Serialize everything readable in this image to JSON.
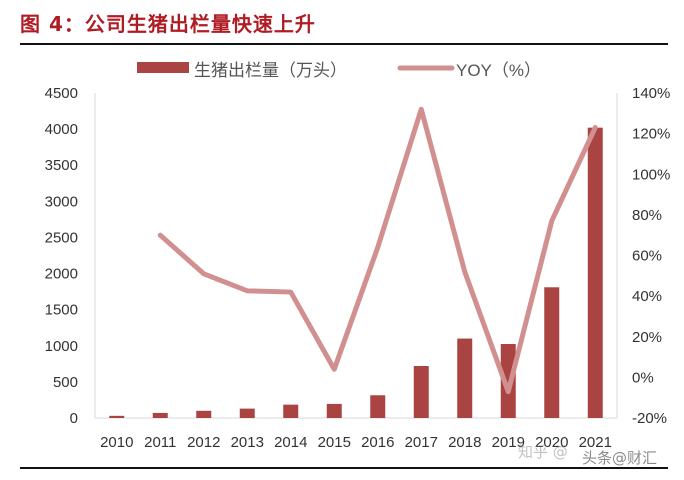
{
  "title": "图 4：公司生猪出栏量快速上升",
  "watermark": [
    "知乎 @",
    "头条@财汇"
  ],
  "chart_data": {
    "type": "bar+line",
    "categories": [
      "2010",
      "2011",
      "2012",
      "2013",
      "2014",
      "2015",
      "2016",
      "2017",
      "2018",
      "2019",
      "2020",
      "2021"
    ],
    "legend_position": "top",
    "grid": false,
    "series": [
      {
        "name": "生猪出栏量（万头）",
        "type": "bar",
        "axis": "left",
        "color": "#a94442",
        "values": [
          30,
          70,
          100,
          130,
          185,
          195,
          315,
          720,
          1100,
          1025,
          1810,
          4020
        ]
      },
      {
        "name": "YOY（%）",
        "type": "line",
        "axis": "right",
        "color": "#d28f8f",
        "values": [
          null,
          70,
          51,
          42.6,
          42,
          4,
          64,
          132,
          52,
          -7,
          77,
          123
        ]
      }
    ],
    "left_axis": {
      "ylim": [
        0,
        4500
      ],
      "ticks": [
        "0",
        "500",
        "1000",
        "1500",
        "2000",
        "2500",
        "3000",
        "3500",
        "4000",
        "4500"
      ]
    },
    "right_axis": {
      "ylim": [
        -20,
        140
      ],
      "ticks": [
        "-20%",
        "0%",
        "20%",
        "40%",
        "60%",
        "80%",
        "100%",
        "120%",
        "140%"
      ]
    }
  }
}
